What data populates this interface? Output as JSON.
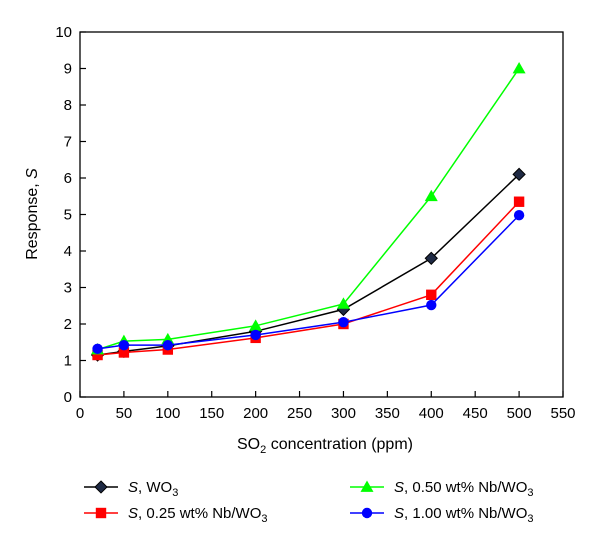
{
  "chart_data": {
    "type": "line",
    "title": "",
    "xlabel": {
      "pre": "SO",
      "sub": "2",
      "post": " concentration (ppm)"
    },
    "ylabel": {
      "pre": "Response, ",
      "italic": "S"
    },
    "xlim": [
      0,
      550
    ],
    "ylim": [
      0,
      10
    ],
    "x_ticks": [
      0,
      50,
      100,
      150,
      200,
      250,
      300,
      350,
      400,
      450,
      500,
      550
    ],
    "y_ticks": [
      0,
      1,
      2,
      3,
      4,
      5,
      6,
      7,
      8,
      9,
      10
    ],
    "grid": false,
    "legend_position": "bottom",
    "x": [
      20,
      50,
      100,
      200,
      300,
      400,
      500
    ],
    "series": [
      {
        "name": {
          "italic": "S",
          "pre": ",  WO",
          "sub": "3",
          "post": ""
        },
        "color": "#000000",
        "marker": "diamond",
        "marker_fill": "#1f2a44",
        "values": [
          1.15,
          1.25,
          1.4,
          1.8,
          2.4,
          3.8,
          6.1
        ]
      },
      {
        "name": {
          "italic": "S",
          "pre": ",  0.25 wt% Nb/WO",
          "sub": "3",
          "post": ""
        },
        "color": "#ff0000",
        "marker": "square",
        "marker_fill": "#ff0000",
        "values": [
          1.15,
          1.22,
          1.3,
          1.62,
          2.0,
          2.8,
          5.35
        ]
      },
      {
        "name": {
          "italic": "S",
          "pre": ",  0.50 wt% Nb/WO",
          "sub": "3",
          "post": ""
        },
        "color": "#00ff00",
        "marker": "triangle",
        "marker_fill": "#00ff00",
        "values": [
          1.3,
          1.53,
          1.58,
          1.95,
          2.55,
          5.5,
          9.0
        ]
      },
      {
        "name": {
          "italic": "S",
          "pre": ",  1.00 wt% Nb/WO",
          "sub": "3",
          "post": ""
        },
        "color": "#0000ff",
        "marker": "circle",
        "marker_fill": "#0000ff",
        "values": [
          1.32,
          1.42,
          1.42,
          1.7,
          2.05,
          2.52,
          4.98
        ]
      }
    ]
  }
}
